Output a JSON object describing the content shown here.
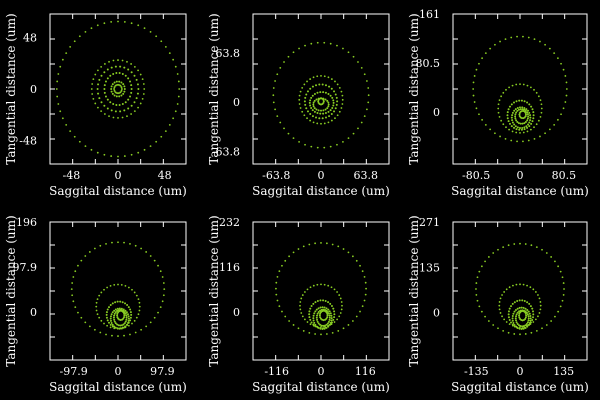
{
  "colors": {
    "background": "#000000",
    "frame": "#ffffff",
    "spot": "#88cc22"
  },
  "chart_data": [
    {
      "type": "scatter",
      "xlabel": "Saggital distance (um)",
      "ylabel": "Tangential distance (um)",
      "xlim": [
        -70,
        70
      ],
      "ylim": [
        -70,
        70
      ],
      "xticks": [
        -48,
        0,
        48
      ],
      "xtick_labels": [
        "-48",
        "0",
        "48"
      ],
      "yticks": [
        -48,
        0,
        48
      ],
      "ytick_labels": [
        "-48",
        "0",
        "48"
      ],
      "rings": [
        {
          "cx": 0,
          "cy": 0,
          "rx": 63,
          "ry": 63,
          "n": 56
        },
        {
          "cx": 0,
          "cy": 0,
          "rx": 27,
          "ry": 27,
          "n": 36
        },
        {
          "cx": 0,
          "cy": 0,
          "rx": 21,
          "ry": 21,
          "n": 30
        },
        {
          "cx": 0,
          "cy": 0,
          "rx": 14,
          "ry": 15,
          "n": 26
        },
        {
          "cx": 0,
          "cy": 0,
          "rx": 7,
          "ry": 7,
          "n": 18
        },
        {
          "cx": 0,
          "cy": 0,
          "rx": 4,
          "ry": 4,
          "n": 14
        }
      ]
    },
    {
      "type": "scatter",
      "xlabel": "Saggital distance (um)",
      "ylabel": "Tangential distance (um)",
      "xlim": [
        -97,
        97
      ],
      "ylim": [
        -80,
        114
      ],
      "xticks": [
        -63.8,
        0,
        63.8
      ],
      "xtick_labels": [
        "-63.8",
        "0",
        "63.8"
      ],
      "yticks": [
        -63.8,
        0,
        63.8
      ],
      "ytick_labels": [
        "-63.8",
        "0",
        "63.8"
      ],
      "rings": [
        {
          "cx": 0,
          "cy": 9,
          "rx": 68,
          "ry": 68,
          "n": 46
        },
        {
          "cx": 0,
          "cy": 3,
          "rx": 31,
          "ry": 31,
          "n": 36
        },
        {
          "cx": 0,
          "cy": 1,
          "rx": 23,
          "ry": 22,
          "n": 30
        },
        {
          "cx": 1,
          "cy": -1,
          "rx": 17,
          "ry": 14,
          "n": 26
        },
        {
          "cx": 0,
          "cy": -3,
          "rx": 11,
          "ry": 8,
          "n": 20
        },
        {
          "cx": 0,
          "cy": 1,
          "rx": 4,
          "ry": 4,
          "n": 12
        }
      ]
    },
    {
      "type": "scatter",
      "xlabel": "Saggital distance (um)",
      "ylabel": "Tangential distance (um)",
      "xlim": [
        -123,
        123
      ],
      "ylim": [
        -85,
        161
      ],
      "xticks": [
        -80.5,
        0,
        80.5
      ],
      "xtick_labels": [
        "-80.5",
        "0",
        "80.5"
      ],
      "yticks": [
        0,
        80.5,
        161
      ],
      "ytick_labels": [
        "0",
        "80.5",
        "161"
      ],
      "rings": [
        {
          "cx": 0,
          "cy": 38,
          "rx": 86,
          "ry": 86,
          "n": 50
        },
        {
          "cx": 0,
          "cy": 6,
          "rx": 40,
          "ry": 40,
          "n": 36
        },
        {
          "cx": 1,
          "cy": -5,
          "rx": 24,
          "ry": 24,
          "n": 30
        },
        {
          "cx": 2,
          "cy": -9,
          "rx": 17,
          "ry": 17,
          "n": 26
        },
        {
          "cx": 3,
          "cy": -7,
          "rx": 12,
          "ry": 12,
          "n": 22
        },
        {
          "cx": 5,
          "cy": -4,
          "rx": 6,
          "ry": 6,
          "n": 14
        }
      ]
    },
    {
      "type": "scatter",
      "xlabel": "Saggital distance (um)",
      "ylabel": "Tangential distance (um)",
      "xlim": [
        -150,
        150
      ],
      "ylim": [
        -104,
        196
      ],
      "xticks": [
        -97.9,
        0,
        97.9
      ],
      "xtick_labels": [
        "-97.9",
        "0",
        "97.9"
      ],
      "yticks": [
        0,
        97.9,
        196
      ],
      "ytick_labels": [
        "0",
        "97.9",
        "196"
      ],
      "rings": [
        {
          "cx": 0,
          "cy": 50,
          "rx": 102,
          "ry": 102,
          "n": 48
        },
        {
          "cx": 0,
          "cy": 12,
          "rx": 48,
          "ry": 48,
          "n": 36
        },
        {
          "cx": 2,
          "cy": -6,
          "rx": 27,
          "ry": 29,
          "n": 30
        },
        {
          "cx": 4,
          "cy": -14,
          "rx": 20,
          "ry": 22,
          "n": 28
        },
        {
          "cx": 5,
          "cy": -12,
          "rx": 14,
          "ry": 17,
          "n": 24
        },
        {
          "cx": 6,
          "cy": -7,
          "rx": 8,
          "ry": 10,
          "n": 16
        }
      ]
    },
    {
      "type": "scatter",
      "xlabel": "Saggital distance (um)",
      "ylabel": "Tangential distance (um)",
      "xlim": [
        -178,
        178
      ],
      "ylim": [
        -124,
        232
      ],
      "xticks": [
        -116,
        0,
        116
      ],
      "xtick_labels": [
        "-116",
        "0",
        "116"
      ],
      "yticks": [
        0,
        116,
        232
      ],
      "ytick_labels": [
        "0",
        "116",
        "232"
      ],
      "rings": [
        {
          "cx": 0,
          "cy": 60,
          "rx": 118,
          "ry": 118,
          "n": 48
        },
        {
          "cx": 0,
          "cy": 16,
          "rx": 55,
          "ry": 55,
          "n": 36
        },
        {
          "cx": 2,
          "cy": -6,
          "rx": 33,
          "ry": 36,
          "n": 30
        },
        {
          "cx": 4,
          "cy": -16,
          "rx": 24,
          "ry": 28,
          "n": 28
        },
        {
          "cx": 6,
          "cy": -15,
          "rx": 17,
          "ry": 21,
          "n": 24
        },
        {
          "cx": 7,
          "cy": -9,
          "rx": 10,
          "ry": 12,
          "n": 16
        }
      ]
    },
    {
      "type": "scatter",
      "xlabel": "Saggital distance (um)",
      "ylabel": "Tangential distance (um)",
      "xlim": [
        -207,
        207
      ],
      "ylim": [
        -143,
        271
      ],
      "xticks": [
        -135,
        0,
        135
      ],
      "xtick_labels": [
        "-135",
        "0",
        "135"
      ],
      "yticks": [
        0,
        135,
        271
      ],
      "ytick_labels": [
        "0",
        "135",
        "271"
      ],
      "rings": [
        {
          "cx": 0,
          "cy": 70,
          "rx": 136,
          "ry": 136,
          "n": 48
        },
        {
          "cx": 0,
          "cy": 20,
          "rx": 64,
          "ry": 64,
          "n": 36
        },
        {
          "cx": 3,
          "cy": -6,
          "rx": 38,
          "ry": 42,
          "n": 30
        },
        {
          "cx": 5,
          "cy": -18,
          "rx": 28,
          "ry": 32,
          "n": 28
        },
        {
          "cx": 7,
          "cy": -18,
          "rx": 20,
          "ry": 24,
          "n": 24
        },
        {
          "cx": 8,
          "cy": -10,
          "rx": 11,
          "ry": 14,
          "n": 16
        }
      ]
    }
  ]
}
